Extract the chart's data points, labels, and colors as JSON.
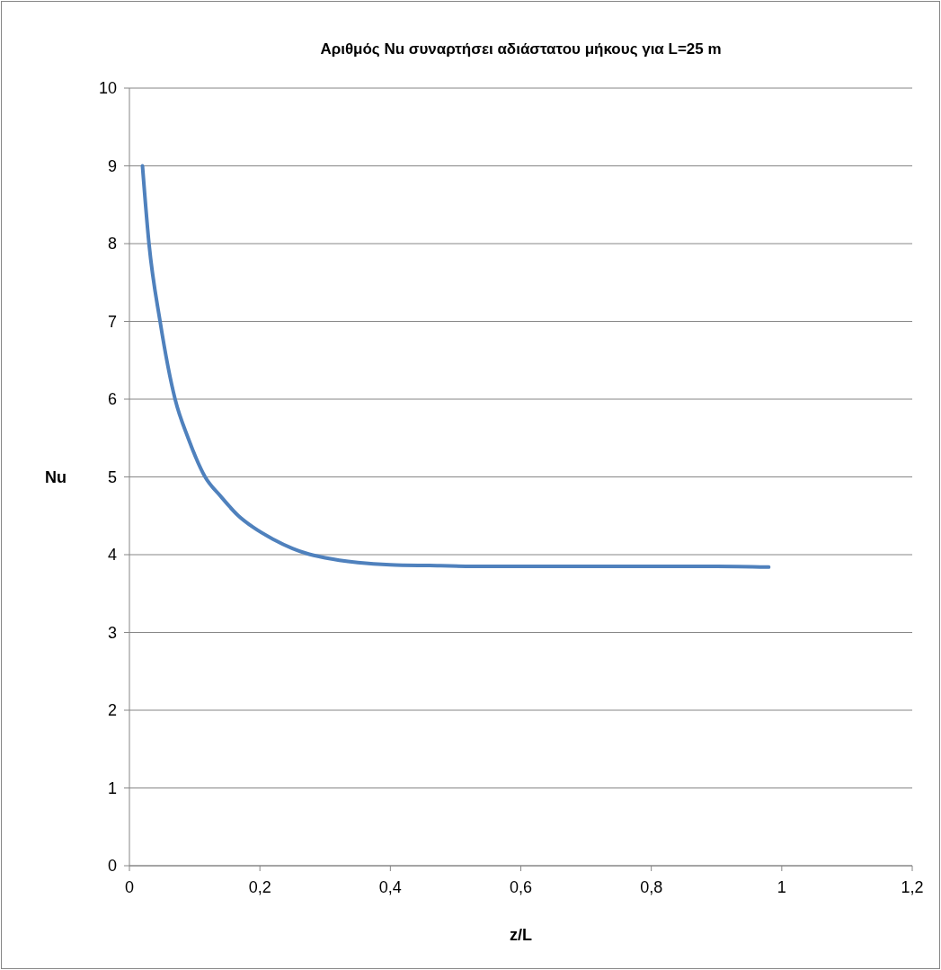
{
  "chart_data": {
    "type": "line",
    "title": "Αριθμός Nu συναρτήσει αδιάστατου μήκους για L=25 m",
    "xlabel": "z/L",
    "ylabel": "Nu",
    "series": [
      {
        "color": "#4f81bd",
        "x": [
          0.02,
          0.03,
          0.047,
          0.07,
          0.09,
          0.116,
          0.14,
          0.167,
          0.19,
          0.22,
          0.25,
          0.27,
          0.3,
          0.35,
          0.4,
          0.46,
          0.55,
          0.63,
          0.75,
          0.9,
          0.98
        ],
        "values": [
          9,
          8,
          7,
          6,
          5.5,
          5,
          4.75,
          4.5,
          4.35,
          4.2,
          4.08,
          4.02,
          3.96,
          3.9,
          3.87,
          3.86,
          3.85,
          3.85,
          3.85,
          3.85,
          3.84
        ]
      }
    ],
    "xlim": [
      0,
      1.2
    ],
    "xticks": [
      0,
      {
        "value": 0.2,
        "label": "0,2"
      },
      {
        "value": 0.4,
        "label": "0,4"
      },
      {
        "value": 0.6,
        "label": "0,6"
      },
      {
        "value": 0.8,
        "label": "0,8"
      },
      1,
      {
        "value": 1.2,
        "label": "1,2"
      }
    ],
    "ylim": [
      0,
      10
    ],
    "yticks": [
      0,
      1,
      2,
      3,
      4,
      5,
      6,
      7,
      8,
      9,
      10
    ],
    "grid": "y",
    "marker": "none",
    "line_style": "solid"
  }
}
